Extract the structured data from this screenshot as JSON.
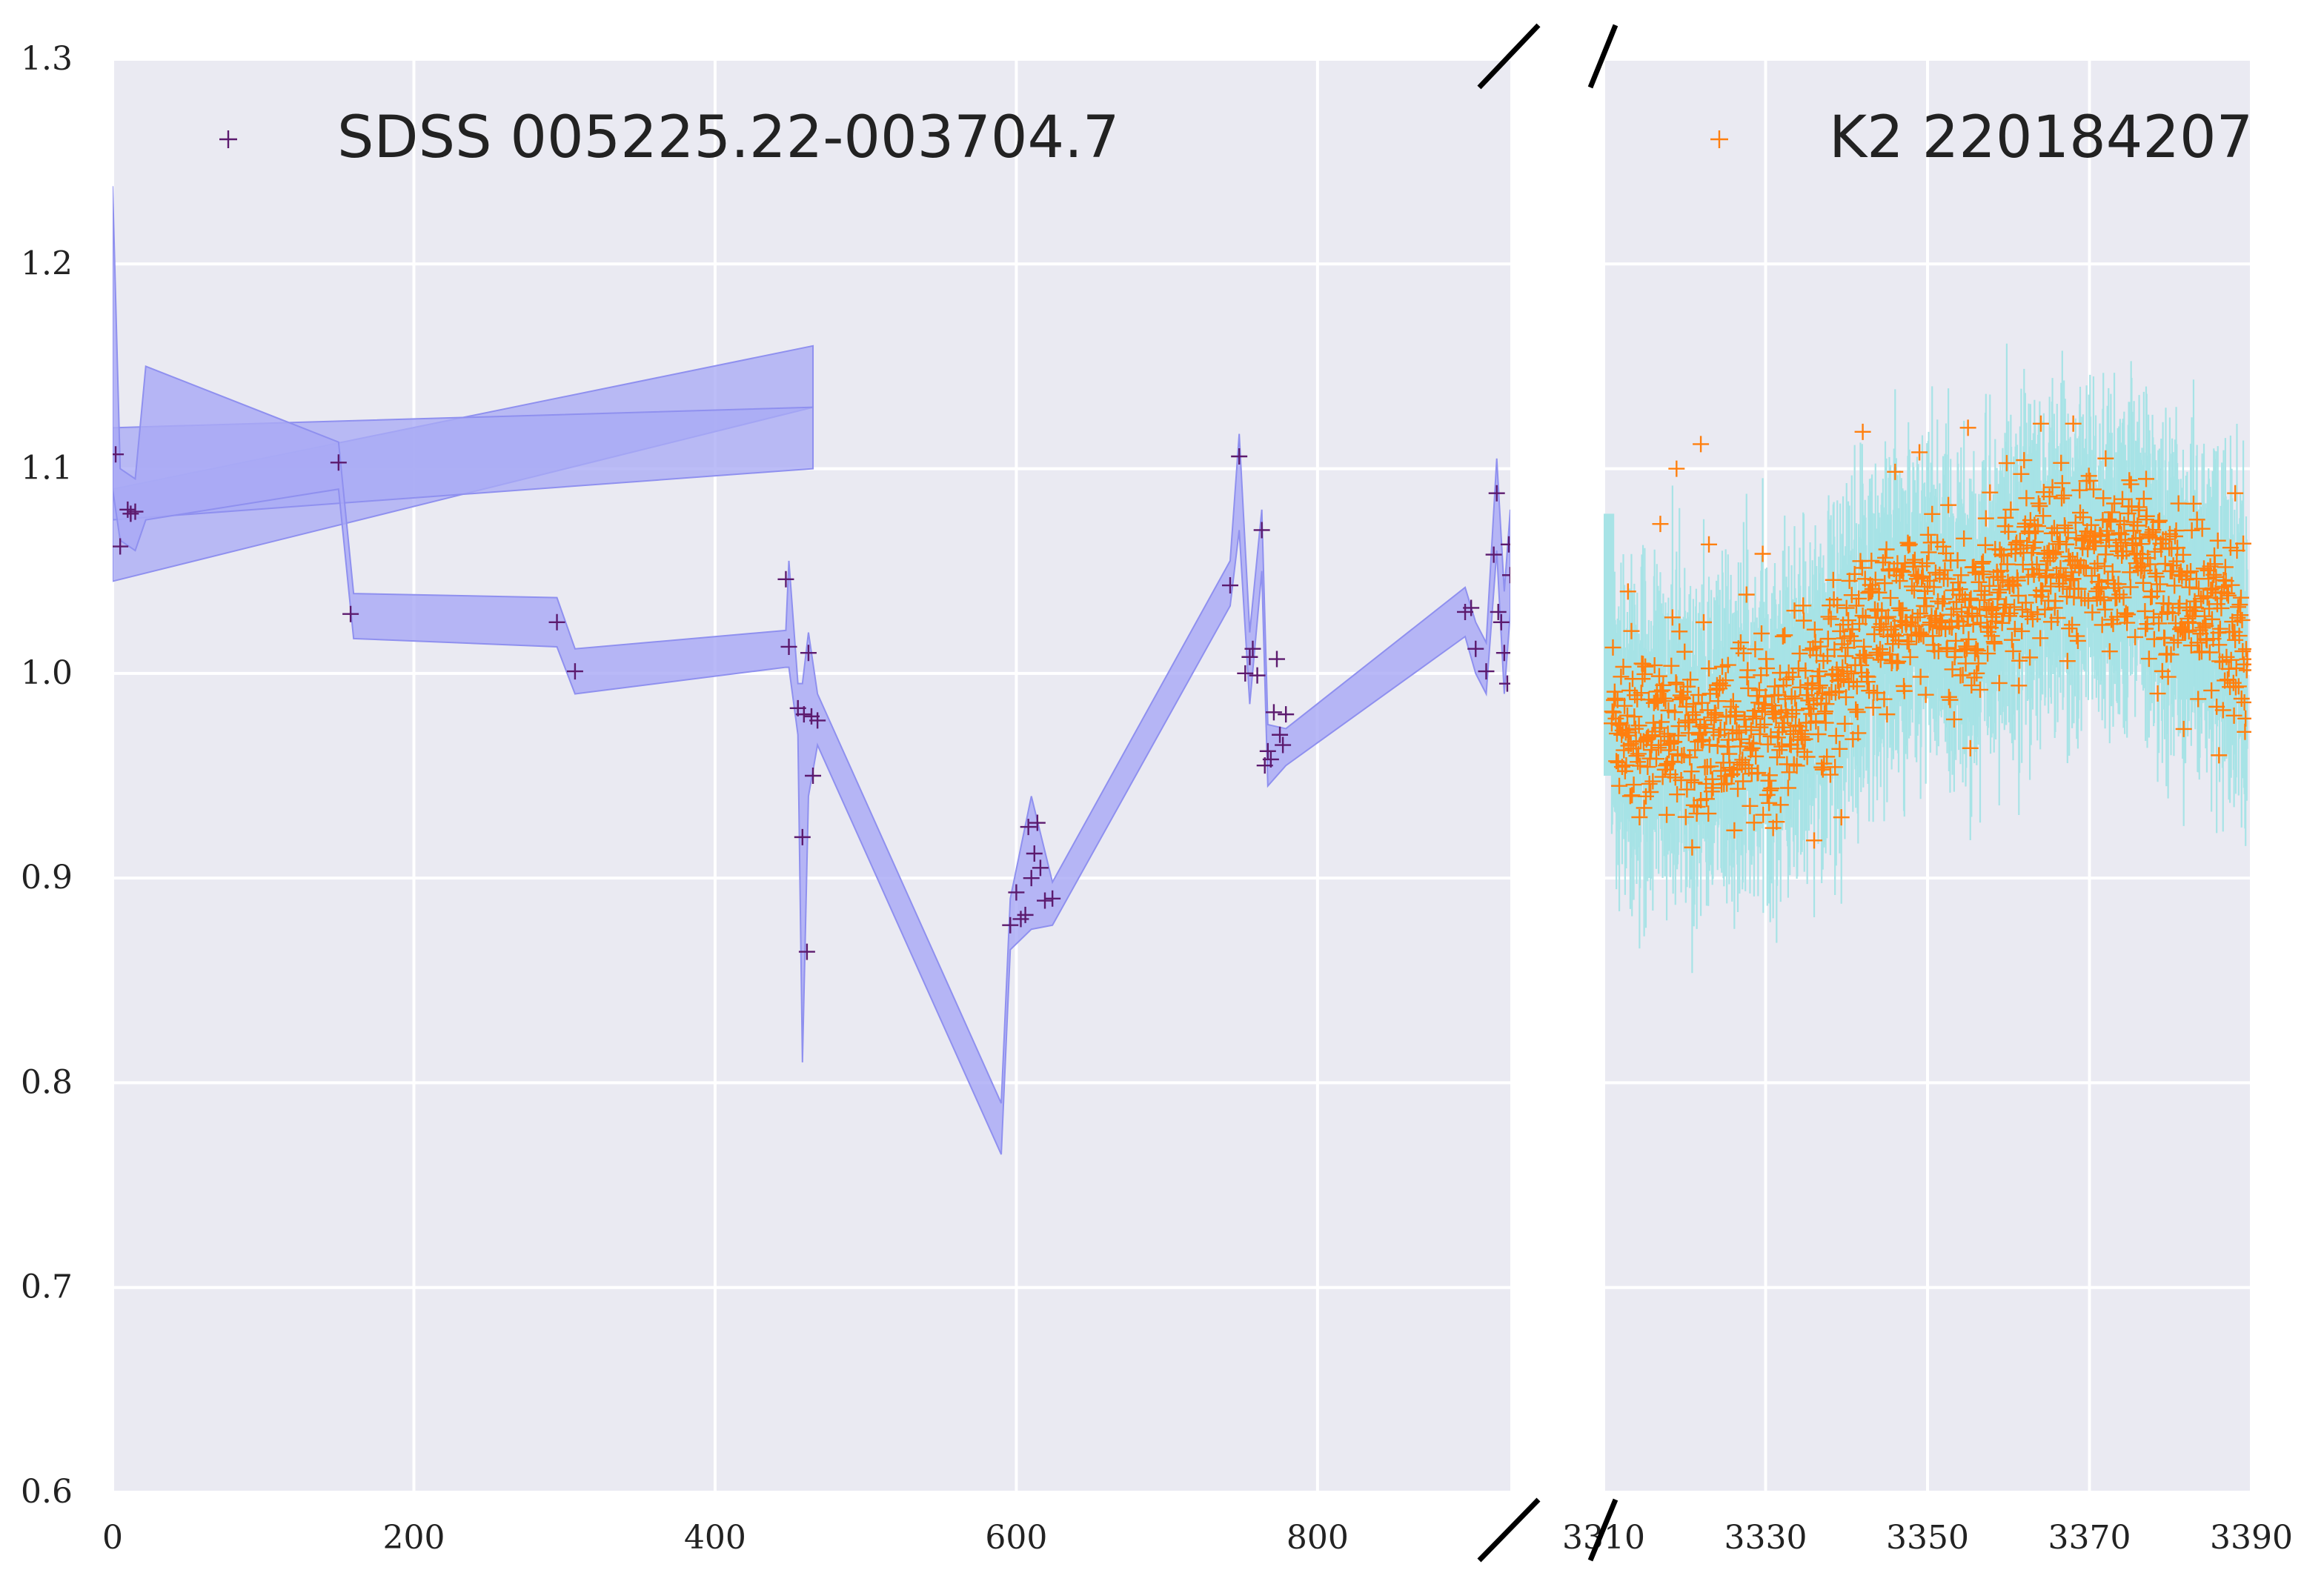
{
  "chart_data": [
    {
      "type": "scatter",
      "panel": "left",
      "xlim": [
        0,
        928
      ],
      "ylim": [
        0.6,
        1.3
      ],
      "xticks": [
        0,
        200,
        400,
        600,
        800
      ],
      "yticks": [
        0.6,
        0.7,
        0.8,
        0.9,
        1.0,
        1.1,
        1.2,
        1.3
      ],
      "xtick_labels": [
        "0",
        "200",
        "400",
        "600",
        "800"
      ],
      "ytick_labels": [
        "0.6",
        "0.7",
        "0.8",
        "0.9",
        "1.0",
        "1.1",
        "1.2",
        "1.3"
      ],
      "grid": true,
      "legend_position": "top-left",
      "series": [
        {
          "name": "SDSS 005225.22-003704.7",
          "marker": "+",
          "color": "#5c1a6e",
          "band_color": "#a9aaf5",
          "x": [
            2,
            5,
            10,
            12,
            15,
            150,
            158,
            295,
            307,
            447,
            449,
            455,
            458,
            459,
            461,
            462,
            464,
            465,
            468,
            742,
            748,
            752,
            755,
            757,
            760,
            763,
            765,
            767,
            769,
            771,
            773,
            775,
            777,
            779,
            596,
            600,
            603,
            606,
            608,
            610,
            612,
            614,
            616,
            619,
            624,
            898,
            902,
            905,
            912,
            917,
            919,
            920,
            922,
            924,
            926,
            927,
            928
          ],
          "y": [
            1.107,
            1.062,
            1.08,
            1.078,
            1.079,
            1.103,
            1.029,
            1.025,
            1.001,
            1.046,
            1.013,
            0.983,
            0.92,
            0.98,
            0.864,
            1.01,
            0.979,
            0.95,
            0.977,
            1.043,
            1.106,
            1.0,
            1.008,
            1.012,
            0.999,
            1.07,
            0.955,
            0.962,
            0.958,
            0.981,
            1.007,
            0.97,
            0.965,
            0.98,
            0.877,
            0.893,
            0.88,
            0.882,
            0.925,
            0.9,
            0.912,
            0.927,
            0.905,
            0.889,
            0.89,
            1.03,
            1.032,
            1.012,
            1.001,
            1.058,
            1.088,
            1.03,
            1.025,
            1.01,
            0.995,
            1.063,
            1.048
          ],
          "band": [
            {
              "x": 0,
              "lo": 1.09,
              "hi": 1.238
            },
            {
              "x": 5,
              "lo": 1.065,
              "hi": 1.1
            },
            {
              "x": 15,
              "lo": 1.06,
              "hi": 1.095
            },
            {
              "x": 22,
              "lo": 1.075,
              "hi": 1.15
            },
            {
              "x": 150,
              "lo": 1.09,
              "hi": 1.113
            },
            {
              "x": 160,
              "lo": 1.017,
              "hi": 1.039
            },
            {
              "x": 295,
              "lo": 1.013,
              "hi": 1.037
            },
            {
              "x": 307,
              "lo": 0.99,
              "hi": 1.012
            },
            {
              "x": 447,
              "lo": 1.003,
              "hi": 1.021
            },
            {
              "x": 449,
              "lo": 1.003,
              "hi": 1.055
            },
            {
              "x": 455,
              "lo": 0.97,
              "hi": 0.995
            },
            {
              "x": 458,
              "lo": 0.81,
              "hi": 0.995
            },
            {
              "x": 462,
              "lo": 0.94,
              "hi": 1.02
            },
            {
              "x": 468,
              "lo": 0.965,
              "hi": 0.99
            },
            {
              "x": 590,
              "lo": 0.765,
              "hi": 0.79
            },
            {
              "x": 596,
              "lo": 0.865,
              "hi": 0.89
            },
            {
              "x": 610,
              "lo": 0.875,
              "hi": 0.94
            },
            {
              "x": 624,
              "lo": 0.877,
              "hi": 0.898
            },
            {
              "x": 742,
              "lo": 1.033,
              "hi": 1.055
            },
            {
              "x": 748,
              "lo": 1.07,
              "hi": 1.117
            },
            {
              "x": 755,
              "lo": 0.985,
              "hi": 1.02
            },
            {
              "x": 763,
              "lo": 1.05,
              "hi": 1.08
            },
            {
              "x": 767,
              "lo": 0.945,
              "hi": 0.975
            },
            {
              "x": 779,
              "lo": 0.955,
              "hi": 0.973
            },
            {
              "x": 898,
              "lo": 1.018,
              "hi": 1.042
            },
            {
              "x": 905,
              "lo": 1.0,
              "hi": 1.025
            },
            {
              "x": 912,
              "lo": 0.99,
              "hi": 1.015
            },
            {
              "x": 919,
              "lo": 1.06,
              "hi": 1.105
            },
            {
              "x": 924,
              "lo": 0.99,
              "hi": 1.04
            },
            {
              "x": 928,
              "lo": 1.03,
              "hi": 1.08
            }
          ],
          "spurious_band": [
            {
              "x": 0,
              "y": 1.09,
              "x2": 465,
              "y2": 1.16
            },
            {
              "x": 0,
              "y": 1.12,
              "x2": 465,
              "y2": 1.13
            }
          ]
        }
      ]
    },
    {
      "type": "scatter",
      "panel": "right",
      "xlim": [
        3310,
        3390
      ],
      "ylim": [
        0.6,
        1.3
      ],
      "xticks": [
        3310,
        3330,
        3350,
        3370,
        3390
      ],
      "xtick_labels": [
        "3310",
        "3330",
        "3350",
        "3370",
        "3390"
      ],
      "grid": true,
      "legend_position": "top-right",
      "series": [
        {
          "name": "K2 220184207",
          "marker": "+",
          "color": "#ff7f0e",
          "band_color": "#a7e3e6",
          "trend": [
            {
              "x": 3310,
              "y": 0.985
            },
            {
              "x": 3315,
              "y": 0.972
            },
            {
              "x": 3320,
              "y": 0.968
            },
            {
              "x": 3325,
              "y": 0.97
            },
            {
              "x": 3330,
              "y": 0.975
            },
            {
              "x": 3335,
              "y": 0.99
            },
            {
              "x": 3340,
              "y": 1.005
            },
            {
              "x": 3345,
              "y": 1.025
            },
            {
              "x": 3350,
              "y": 1.032
            },
            {
              "x": 3355,
              "y": 1.025
            },
            {
              "x": 3360,
              "y": 1.045
            },
            {
              "x": 3365,
              "y": 1.045
            },
            {
              "x": 3370,
              "y": 1.06
            },
            {
              "x": 3375,
              "y": 1.055
            },
            {
              "x": 3380,
              "y": 1.04
            },
            {
              "x": 3385,
              "y": 1.025
            },
            {
              "x": 3390,
              "y": 1.02
            }
          ],
          "scatter_sigma": 0.022,
          "n_points": 1100,
          "outliers_x": [
            3313,
            3317,
            3319,
            3322,
            3323,
            3342,
            3349,
            3355,
            3364,
            3368,
            3372,
            3377,
            3381,
            3386,
            3388
          ],
          "outliers_y": [
            1.04,
            1.073,
            1.1,
            1.112,
            1.063,
            1.118,
            1.108,
            1.12,
            1.122,
            1.122,
            1.105,
            1.095,
            1.083,
            0.96,
            1.088
          ]
        }
      ]
    }
  ]
}
